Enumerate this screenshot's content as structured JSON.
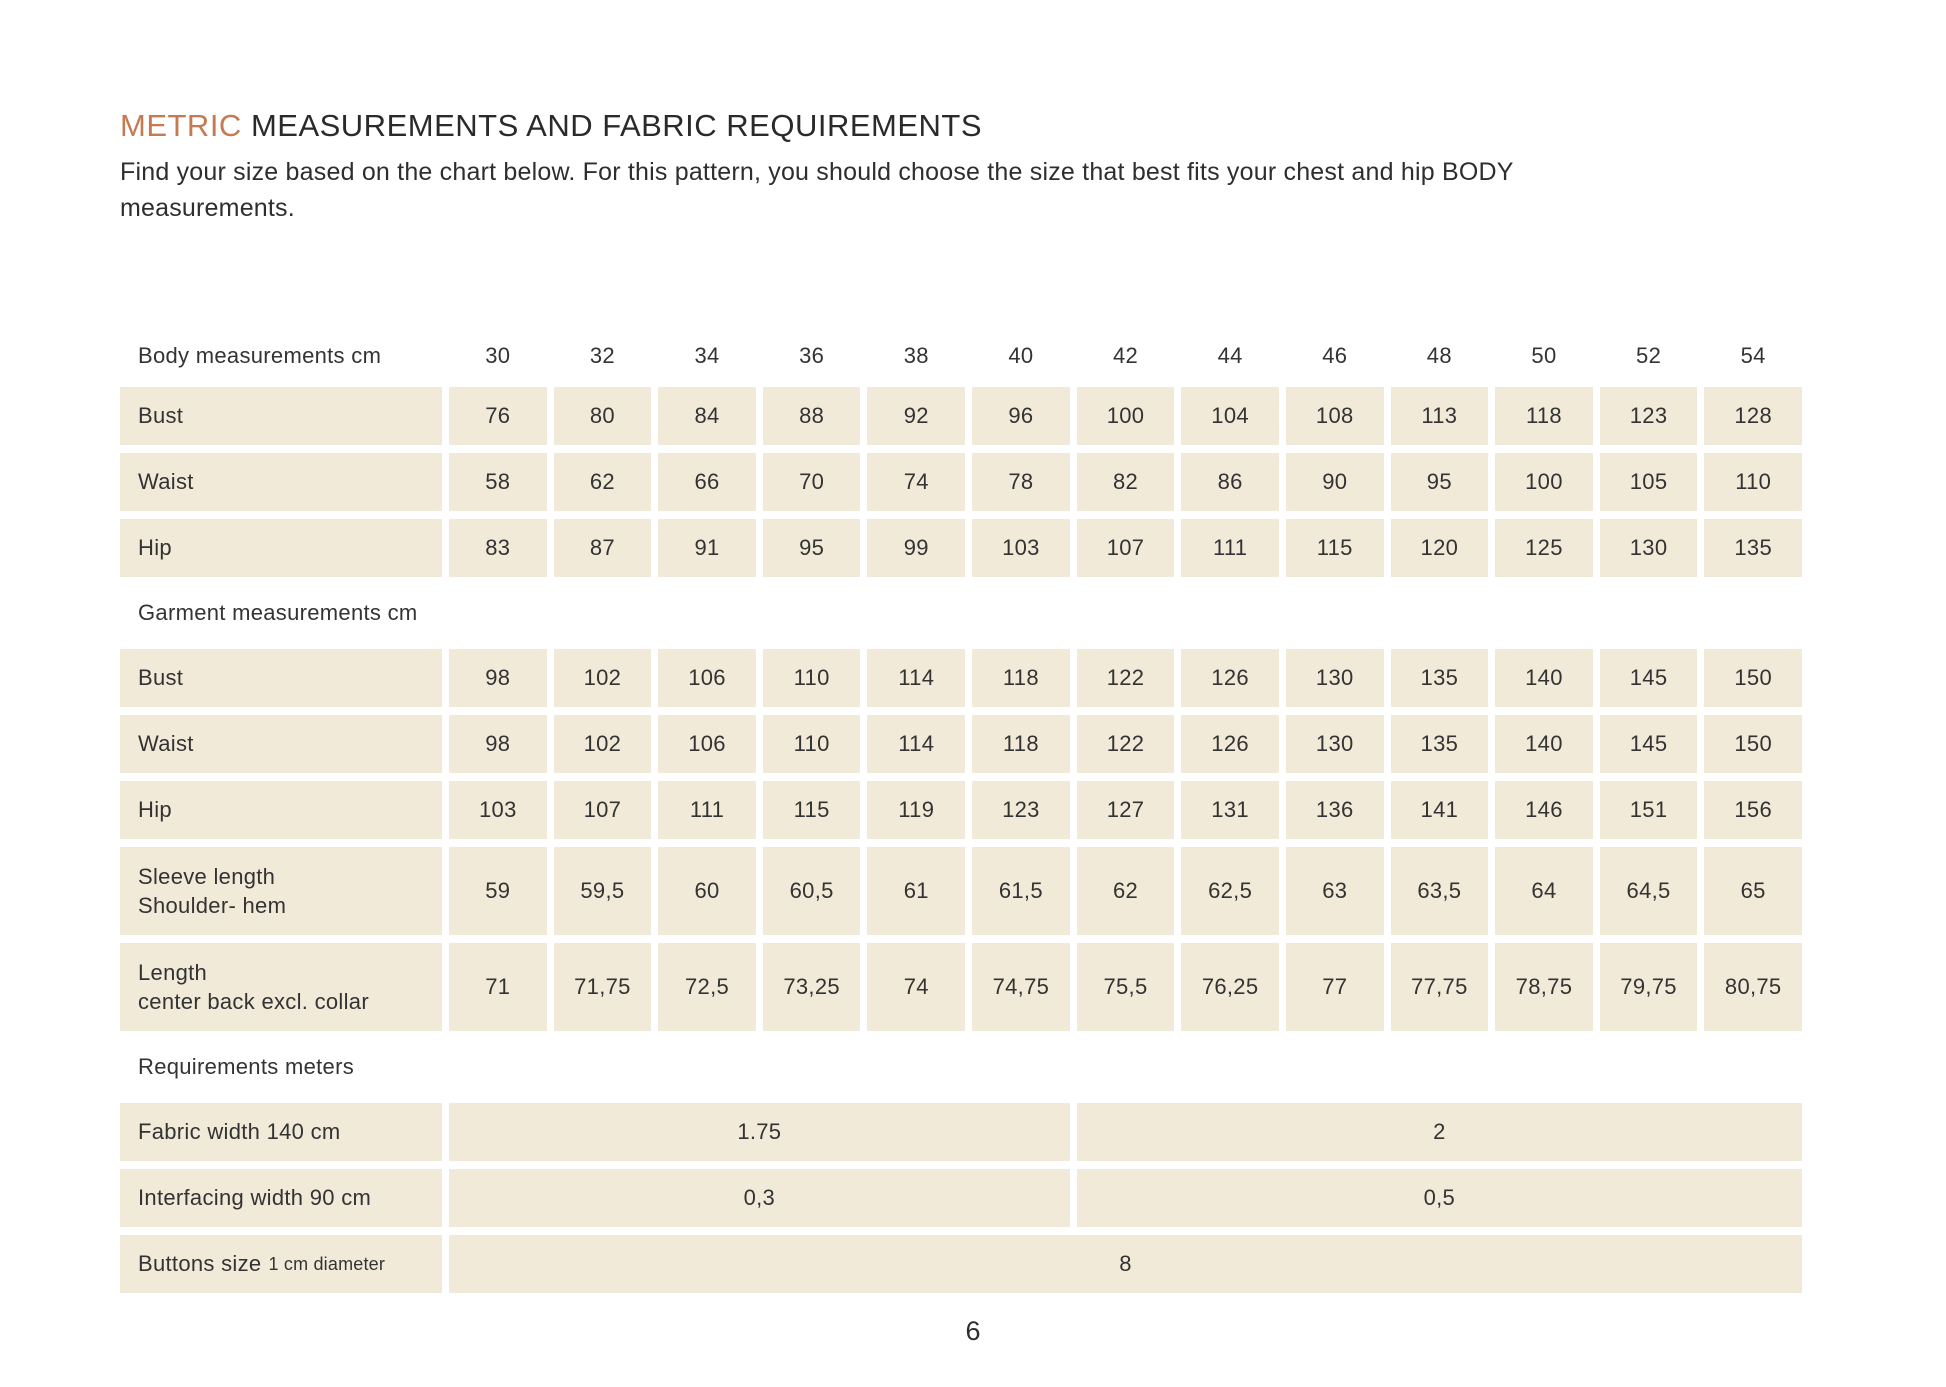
{
  "document": {
    "title_accent": "METRIC",
    "title_rest": " MEASUREMENTS AND FABRIC REQUIREMENTS",
    "intro": "Find your size based on the chart below. For this pattern, you should choose the size that best fits your chest and hip BODY measurements.",
    "page_number": "6"
  },
  "colors": {
    "accent": "#c57a52",
    "cell_background": "#f2ead8",
    "text": "#2f2f2f"
  },
  "table": {
    "body_header": {
      "label": "Body measurements cm",
      "sizes": [
        "30",
        "32",
        "34",
        "36",
        "38",
        "40",
        "42",
        "44",
        "46",
        "48",
        "50",
        "52",
        "54"
      ]
    },
    "body_rows": [
      {
        "label": "Bust",
        "values": [
          "76",
          "80",
          "84",
          "88",
          "92",
          "96",
          "100",
          "104",
          "108",
          "113",
          "118",
          "123",
          "128"
        ]
      },
      {
        "label": "Waist",
        "values": [
          "58",
          "62",
          "66",
          "70",
          "74",
          "78",
          "82",
          "86",
          "90",
          "95",
          "100",
          "105",
          "110"
        ]
      },
      {
        "label": "Hip",
        "values": [
          "83",
          "87",
          "91",
          "95",
          "99",
          "103",
          "107",
          "111",
          "115",
          "120",
          "125",
          "130",
          "135"
        ]
      }
    ],
    "garment_header": {
      "label": "Garment measurements cm"
    },
    "garment_rows": [
      {
        "label": "Bust",
        "values": [
          "98",
          "102",
          "106",
          "110",
          "114",
          "118",
          "122",
          "126",
          "130",
          "135",
          "140",
          "145",
          "150"
        ]
      },
      {
        "label": "Waist",
        "values": [
          "98",
          "102",
          "106",
          "110",
          "114",
          "118",
          "122",
          "126",
          "130",
          "135",
          "140",
          "145",
          "150"
        ]
      },
      {
        "label": "Hip",
        "values": [
          "103",
          "107",
          "111",
          "115",
          "119",
          "123",
          "127",
          "131",
          "136",
          "141",
          "146",
          "151",
          "156"
        ]
      },
      {
        "label": "Sleeve length",
        "label2": "Shoulder- hem",
        "values": [
          "59",
          "59,5",
          "60",
          "60,5",
          "61",
          "61,5",
          "62",
          "62,5",
          "63",
          "63,5",
          "64",
          "64,5",
          "65"
        ]
      },
      {
        "label": "Length",
        "label2": "center back excl. collar",
        "values": [
          "71",
          "71,75",
          "72,5",
          "73,25",
          "74",
          "74,75",
          "75,5",
          "76,25",
          "77",
          "77,75",
          "78,75",
          "79,75",
          "80,75"
        ]
      }
    ],
    "requirements_header": {
      "label": "Requirements meters"
    },
    "requirements_rows": [
      {
        "label": "Fabric width 140 cm",
        "value_sizes_30_40": "1.75",
        "value_sizes_42_54": "2"
      },
      {
        "label": "Interfacing width 90 cm",
        "value_sizes_30_40": "0,3",
        "value_sizes_42_54": "0,5"
      },
      {
        "label": "Buttons size",
        "label_note": "1 cm diameter",
        "value_all_sizes": "8"
      }
    ]
  }
}
